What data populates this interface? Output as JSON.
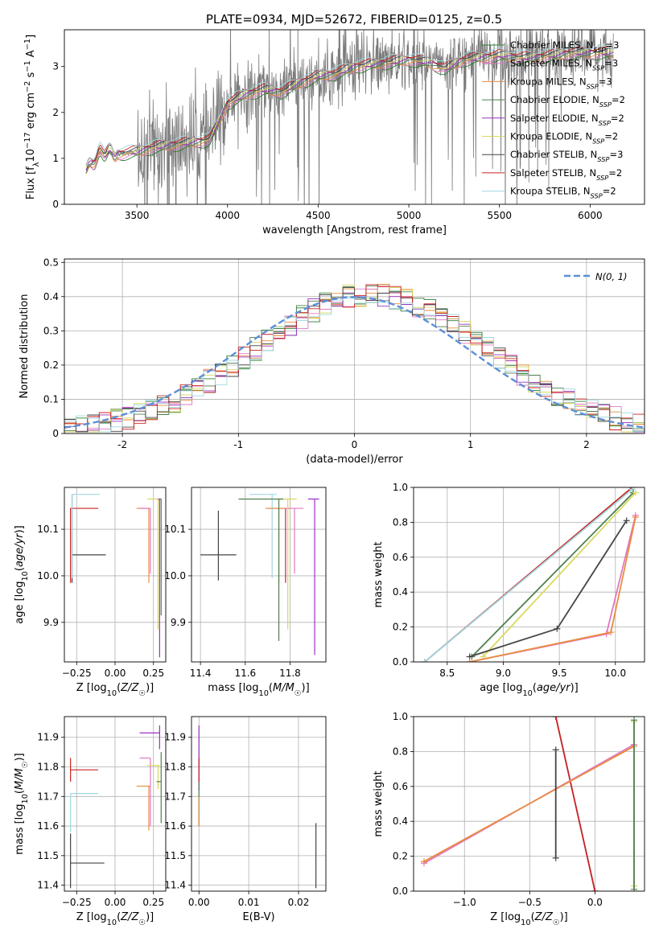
{
  "figure_title": "PLATE=0934, MJD=52672, FIBERID=0125, z=0.5",
  "colors": [
    "#2e7d32",
    "#e377c2",
    "#e88d3f",
    "#4f7f4f",
    "#9b30c0",
    "#d8d860",
    "#444444",
    "#cc2222",
    "#9fd8e0"
  ],
  "legend_entries": [
    "Chabrier MILES, N_SSP=3",
    "Salpeter MILES, N_SSP=3",
    "Kroupa MILES, N_SSP=3",
    "Chabrier ELODIE, N_SSP=2",
    "Salpeter ELODIE, N_SSP=2",
    "Kroupa ELODIE, N_SSP=2",
    "Chabrier STELIB, N_SSP=3",
    "Salpeter STELIB, N_SSP=2",
    "Kroupa STELIB, N_SSP=2"
  ],
  "chart_data": [
    {
      "id": "spectrum",
      "type": "line",
      "xlabel": "wavelength [Angstrom, rest frame]",
      "ylabel": "Flux [f_λ 10^-17 erg cm^-2 s^-1 A^-1]",
      "xlim": [
        3100,
        6300
      ],
      "ylim": [
        0,
        3.8
      ],
      "xticks": [
        3500,
        4000,
        4500,
        5000,
        5500,
        6000
      ],
      "yticks": [
        0,
        1,
        2,
        3
      ],
      "grid": false,
      "legend": "top-right",
      "data_start": 3220,
      "data_end": 6130,
      "continuum": [
        [
          3220,
          0.75
        ],
        [
          3300,
          1.15
        ],
        [
          3400,
          1.1
        ],
        [
          3500,
          1.15
        ],
        [
          3600,
          1.25
        ],
        [
          3700,
          1.3
        ],
        [
          3800,
          1.35
        ],
        [
          3900,
          1.4
        ],
        [
          4000,
          2.2
        ],
        [
          4100,
          2.4
        ],
        [
          4200,
          2.5
        ],
        [
          4300,
          2.45
        ],
        [
          4400,
          2.65
        ],
        [
          4500,
          2.8
        ],
        [
          4600,
          2.85
        ],
        [
          4700,
          3.0
        ],
        [
          4800,
          3.05
        ],
        [
          4900,
          3.1
        ],
        [
          5000,
          3.15
        ],
        [
          5100,
          3.1
        ],
        [
          5200,
          2.95
        ],
        [
          5300,
          3.15
        ],
        [
          5400,
          3.2
        ],
        [
          5500,
          3.25
        ],
        [
          5600,
          3.2
        ],
        [
          5700,
          3.2
        ],
        [
          5800,
          3.25
        ],
        [
          5900,
          3.3
        ],
        [
          6000,
          3.3
        ],
        [
          6100,
          3.3
        ]
      ]
    },
    {
      "id": "residuals",
      "type": "line",
      "xlabel": "(data-model)/error",
      "ylabel": "Normed distribution",
      "xlim": [
        -2.5,
        2.5
      ],
      "ylim": [
        0,
        0.51
      ],
      "xticks": [
        -2,
        -1,
        0,
        1,
        2
      ],
      "yticks": [
        0.0,
        0.1,
        0.2,
        0.3,
        0.4,
        0.5
      ],
      "grid": true,
      "legend": "top-right",
      "gaussian_label": "N(0,1)",
      "gaussian_color": "#5b8fd6",
      "bins": 50
    },
    {
      "id": "age_vs_Z",
      "type": "scatter",
      "xlabel": "Z [log10(Z/Z☉)]",
      "ylabel": "age  [log10(age/yr)]",
      "xlim": [
        -0.33,
        0.33
      ],
      "ylim": [
        9.815,
        10.19
      ],
      "xticks": [
        -0.25,
        0.0,
        0.25
      ],
      "xticklabels": [
        "−0.25",
        "0.00",
        "0.25"
      ],
      "yticks": [
        9.9,
        10.0,
        10.1
      ],
      "yticklabels": [
        "9.9",
        "10.0",
        "10.1"
      ],
      "grid": true,
      "points": [
        {
          "x": -0.28,
          "y": 10.045,
          "xerr": [
            0,
            0.22
          ],
          "yerr": [
            0.06,
            0.13
          ],
          "c": 6
        },
        {
          "x": -0.29,
          "y": 10.145,
          "xerr": [
            0,
            0.18
          ],
          "yerr": [
            0.16,
            0
          ],
          "c": 7
        },
        {
          "x": -0.28,
          "y": 10.175,
          "xerr": [
            0,
            0.18
          ],
          "yerr": [
            0.18,
            0
          ],
          "c": 8
        },
        {
          "x": 0.22,
          "y": 10.145,
          "xerr": [
            0.08,
            0
          ],
          "yerr": [
            0.16,
            0
          ],
          "c": 2
        },
        {
          "x": 0.23,
          "y": 10.145,
          "xerr": [
            0.07,
            0
          ],
          "yerr": [
            0.14,
            0
          ],
          "c": 1
        },
        {
          "x": 0.28,
          "y": 10.165,
          "xerr": [
            0.07,
            0.01
          ],
          "yerr": [
            0.28,
            0
          ],
          "c": 5
        },
        {
          "x": 0.29,
          "y": 10.165,
          "xerr": [
            0.01,
            0.01
          ],
          "yerr": [
            0.34,
            0
          ],
          "c": 4
        },
        {
          "x": 0.3,
          "y": 10.165,
          "xerr": [
            0.01,
            0
          ],
          "yerr": [
            0.25,
            0
          ],
          "c": 3
        }
      ]
    },
    {
      "id": "age_vs_mass",
      "type": "scatter",
      "xlabel": "mass [log10(M/M☉)]",
      "ylabel": "",
      "xlim": [
        11.36,
        11.96
      ],
      "ylim": [
        9.815,
        10.19
      ],
      "xticks": [
        11.4,
        11.6,
        11.8
      ],
      "xticklabels": [
        "11.4",
        "11.6",
        "11.8"
      ],
      "yticks": [
        9.9,
        10.0,
        10.1
      ],
      "yticklabels": [
        "9.9",
        "10.0",
        "10.1"
      ],
      "grid": true,
      "points": [
        {
          "x": 11.48,
          "y": 10.045,
          "xerr": [
            0.08,
            0.08
          ],
          "yerr": [
            0.055,
            0.095
          ],
          "c": 6
        },
        {
          "x": 11.78,
          "y": 10.145,
          "xerr": [
            0.08,
            0.02
          ],
          "yerr": [
            0.16,
            0
          ],
          "c": 7
        },
        {
          "x": 11.72,
          "y": 10.175,
          "xerr": [
            0.1,
            0.02
          ],
          "yerr": [
            0.18,
            0
          ],
          "c": 8
        },
        {
          "x": 11.75,
          "y": 10.145,
          "xerr": [
            0.06,
            0.05
          ],
          "yerr": [
            0.16,
            0
          ],
          "c": 2
        },
        {
          "x": 11.82,
          "y": 10.145,
          "xerr": [
            0.04,
            0.04
          ],
          "yerr": [
            0.14,
            0
          ],
          "c": 1
        },
        {
          "x": 11.79,
          "y": 10.165,
          "xerr": [
            0.05,
            0.04
          ],
          "yerr": [
            0.28,
            0
          ],
          "c": 5
        },
        {
          "x": 11.75,
          "y": 10.165,
          "xerr": [
            0.18,
            0.02
          ],
          "yerr": [
            0.305,
            0
          ],
          "c": 3
        },
        {
          "x": 11.91,
          "y": 10.165,
          "xerr": [
            0.03,
            0.02
          ],
          "yerr": [
            0.335,
            0
          ],
          "c": 4
        }
      ]
    },
    {
      "id": "massweight_vs_age",
      "type": "line",
      "xlabel": "age  [log10(age/yr)]",
      "ylabel": "mass weight",
      "xlim": [
        8.2,
        10.26
      ],
      "ylim": [
        0,
        1.0
      ],
      "xticks": [
        8.5,
        9.0,
        9.5,
        10.0
      ],
      "xticklabels": [
        "8.5",
        "9.0",
        "9.5",
        "10.0"
      ],
      "yticks": [
        0.0,
        0.2,
        0.4,
        0.6,
        0.8,
        1.0
      ],
      "yticklabels": [
        "0.0",
        "0.2",
        "0.4",
        "0.6",
        "0.8",
        "1.0"
      ],
      "grid": true,
      "series": [
        {
          "c": 7,
          "pts": [
            [
              8.3,
              0.0
            ],
            [
              10.15,
              1.0
            ]
          ]
        },
        {
          "c": 8,
          "pts": [
            [
              8.3,
              0.0
            ],
            [
              10.15,
              0.99
            ]
          ]
        },
        {
          "c": 3,
          "pts": [
            [
              8.72,
              0.03
            ],
            [
              10.16,
              0.97
            ]
          ]
        },
        {
          "c": 5,
          "pts": [
            [
              8.82,
              0.03
            ],
            [
              10.18,
              0.97
            ]
          ]
        },
        {
          "c": 6,
          "pts": [
            [
              8.7,
              0.03
            ],
            [
              9.48,
              0.19
            ],
            [
              10.1,
              0.81
            ]
          ]
        },
        {
          "c": 1,
          "pts": [
            [
              8.7,
              0.0
            ],
            [
              9.92,
              0.16
            ],
            [
              10.18,
              0.84
            ]
          ]
        },
        {
          "c": 2,
          "pts": [
            [
              8.7,
              0.0
            ],
            [
              9.96,
              0.17
            ],
            [
              10.18,
              0.83
            ]
          ]
        }
      ]
    },
    {
      "id": "mass_vs_Z",
      "type": "scatter",
      "xlabel": "Z [log10(Z/Z☉)]",
      "ylabel": "mass [log10(M/M☉)]",
      "xlim": [
        -0.33,
        0.33
      ],
      "ylim": [
        11.38,
        11.97
      ],
      "xticks": [
        -0.25,
        0.0,
        0.25
      ],
      "xticklabels": [
        "−0.25",
        "0.00",
        "0.25"
      ],
      "yticks": [
        11.4,
        11.5,
        11.6,
        11.7,
        11.8,
        11.9
      ],
      "yticklabels": [
        "11.4",
        "11.5",
        "11.6",
        "11.7",
        "11.8",
        "11.9"
      ],
      "grid": true,
      "points": [
        {
          "x": -0.29,
          "y": 11.475,
          "xerr": [
            0,
            0.22
          ],
          "yerr": [
            0.085,
            0.1
          ],
          "c": 6
        },
        {
          "x": -0.29,
          "y": 11.79,
          "xerr": [
            0,
            0.18
          ],
          "yerr": [
            0.04,
            0.04
          ],
          "c": 7
        },
        {
          "x": -0.29,
          "y": 11.71,
          "xerr": [
            0,
            0.18
          ],
          "yerr": [
            0.13,
            0
          ],
          "c": 8
        },
        {
          "x": 0.22,
          "y": 11.735,
          "xerr": [
            0.08,
            0.01
          ],
          "yerr": [
            0.15,
            0
          ],
          "c": 2
        },
        {
          "x": 0.23,
          "y": 11.83,
          "xerr": [
            0.07,
            0
          ],
          "yerr": [
            0.23,
            0
          ],
          "c": 1
        },
        {
          "x": 0.28,
          "y": 11.805,
          "xerr": [
            0.07,
            0.01
          ],
          "yerr": [
            0.08,
            0
          ],
          "c": 5
        },
        {
          "x": 0.29,
          "y": 11.915,
          "xerr": [
            0.13,
            0
          ],
          "yerr": [
            0.055,
            0.025
          ],
          "c": 4
        },
        {
          "x": 0.3,
          "y": 11.75,
          "xerr": [
            0.03,
            0
          ],
          "yerr": [
            0.14,
            0.1
          ],
          "c": 3
        }
      ]
    },
    {
      "id": "mass_vs_ebv",
      "type": "scatter",
      "xlabel": "E(B-V)",
      "ylabel": "",
      "xlim": [
        -0.0015,
        0.0255
      ],
      "ylim": [
        11.38,
        11.97
      ],
      "xticks": [
        0.0,
        0.01,
        0.02
      ],
      "xticklabels": [
        "0.00",
        "0.01",
        "0.02"
      ],
      "yticks": [
        11.4,
        11.5,
        11.6,
        11.7,
        11.8,
        11.9
      ],
      "yticklabels": [
        "11.4",
        "11.5",
        "11.6",
        "11.7",
        "11.8",
        "11.9"
      ],
      "grid": true,
      "points": [
        {
          "x": 0.0,
          "y": 11.83,
          "xerr": [
            0,
            0
          ],
          "yerr": [
            0.11,
            0.11
          ],
          "c": 4
        },
        {
          "x": 0.0,
          "y": 11.79,
          "xerr": [
            0,
            0
          ],
          "yerr": [
            0.04,
            0.04
          ],
          "c": 7
        },
        {
          "x": 0.0,
          "y": 11.71,
          "xerr": [
            0,
            0
          ],
          "yerr": [
            0.09,
            0
          ],
          "c": 8
        },
        {
          "x": 0.0,
          "y": 11.75,
          "xerr": [
            0,
            0
          ],
          "yerr": [
            0.15,
            0
          ],
          "c": 3
        },
        {
          "x": 0.0,
          "y": 11.6,
          "xerr": [
            0,
            0
          ],
          "yerr": [
            0.0,
            0.1
          ],
          "c": 2
        },
        {
          "x": 0.0235,
          "y": 11.475,
          "xerr": [
            0,
            0
          ],
          "yerr": [
            0.085,
            0.135
          ],
          "c": 6
        }
      ]
    },
    {
      "id": "massweight_vs_Z",
      "type": "line",
      "xlabel": "Z [log10(Z/Z☉)]",
      "ylabel": "mass weight",
      "xlim": [
        -1.39,
        0.38
      ],
      "ylim": [
        0,
        1.0
      ],
      "xticks": [
        -1.0,
        -0.5,
        0.0
      ],
      "xticklabels": [
        "−1.0",
        "−0.5",
        "0.0"
      ],
      "yticks": [
        0.0,
        0.2,
        0.4,
        0.6,
        0.8,
        1.0
      ],
      "yticklabels": [
        "0.0",
        "0.2",
        "0.4",
        "0.6",
        "0.8",
        "1.0"
      ],
      "grid": true,
      "series": [
        {
          "c": 8,
          "pts": [
            [
              -0.3,
              1.0
            ],
            [
              0.0,
              0.0
            ]
          ]
        },
        {
          "c": 7,
          "pts": [
            [
              -0.3,
              1.0
            ],
            [
              0.0,
              0.0
            ]
          ]
        },
        {
          "c": 1,
          "pts": [
            [
              -1.31,
              0.16
            ],
            [
              0.3,
              0.84
            ]
          ]
        },
        {
          "c": 2,
          "pts": [
            [
              -1.31,
              0.17
            ],
            [
              0.3,
              0.83
            ]
          ]
        },
        {
          "c": 6,
          "pts": [
            [
              -0.3,
              0.19
            ],
            [
              -0.3,
              0.81
            ]
          ]
        },
        {
          "c": 5,
          "pts": [
            [
              0.3,
              0.03
            ],
            [
              0.3,
              0.97
            ]
          ]
        },
        {
          "c": 3,
          "pts": [
            [
              0.3,
              0.01
            ],
            [
              0.3,
              0.98
            ]
          ]
        }
      ]
    }
  ]
}
